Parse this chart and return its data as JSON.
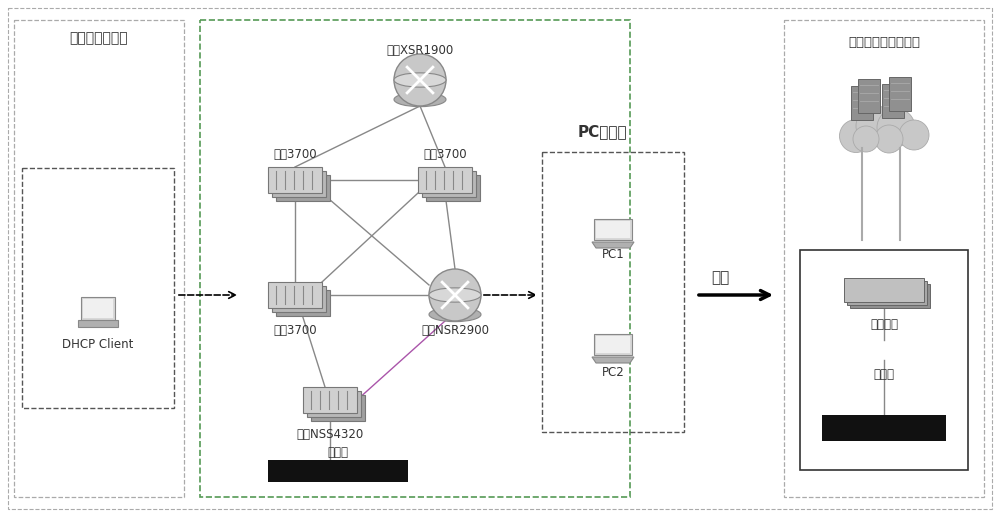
{
  "bg_color": "#ffffff",
  "fig_width": 10.0,
  "fig_height": 5.17,
  "labels": {
    "client_section": "客户端和配置端",
    "dhcp_client": "DHCP Client",
    "pc_section": "PC检测端",
    "cloud_section": "自主可控云测试平台",
    "improve": "改进",
    "pc1": "PC1",
    "pc2": "PC2",
    "nsr1900": "迈普XSR1900",
    "changcheng3700_tl": "长城3700",
    "changcheng3700_tr": "长城3700",
    "changcheng3700_ml": "长城3700",
    "maip_nsr2900": "迈普NSR2900",
    "maip_nss4320": "迈普NSS4320",
    "test_instrument_left": "测试仳",
    "test_instrument_right": "测试仳",
    "tested_device": "被测设备"
  }
}
